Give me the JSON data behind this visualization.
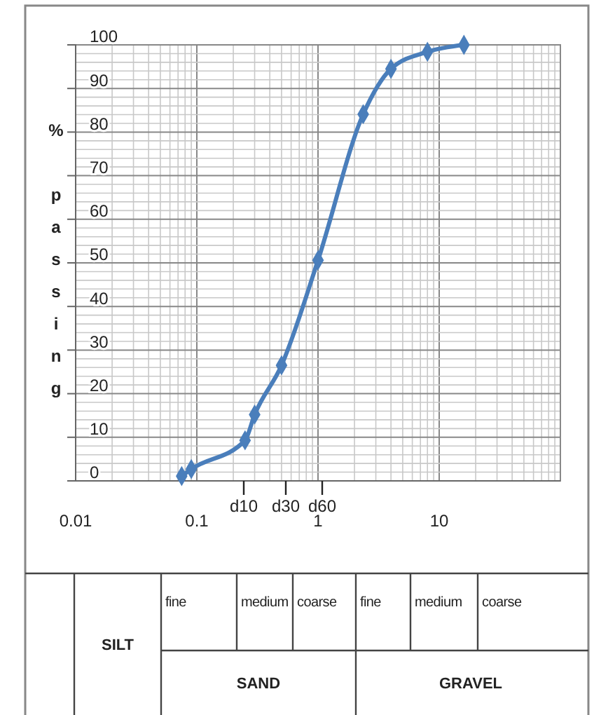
{
  "chart_data": {
    "type": "line",
    "ylabel": "% passing",
    "x": [
      0.075,
      0.09,
      0.25,
      0.3,
      0.5,
      1.0,
      2.36,
      4,
      8,
      16
    ],
    "series": [
      {
        "color": "#4a7ebb",
        "values": [
          1.1,
          2.7,
          9.3,
          15.2,
          26.5,
          50.6,
          84.1,
          94.5,
          98.4,
          100
        ]
      }
    ],
    "log": "x",
    "xlim": [
      0.01,
      100
    ],
    "xticks": [
      0.01,
      0.1,
      1,
      10
    ],
    "ylim": [
      0,
      100
    ],
    "yticks": [
      0,
      10,
      20,
      30,
      40,
      50,
      60,
      70,
      80,
      90,
      100
    ],
    "grid": true,
    "marker": "diamond",
    "line_style": "solid",
    "annotations": [
      "d10",
      "d30",
      "d60",
      "SILT",
      "fine",
      "medium",
      "coarse",
      "fine",
      "medium",
      "coarse",
      "SAND",
      "GRAVEL"
    ]
  }
}
